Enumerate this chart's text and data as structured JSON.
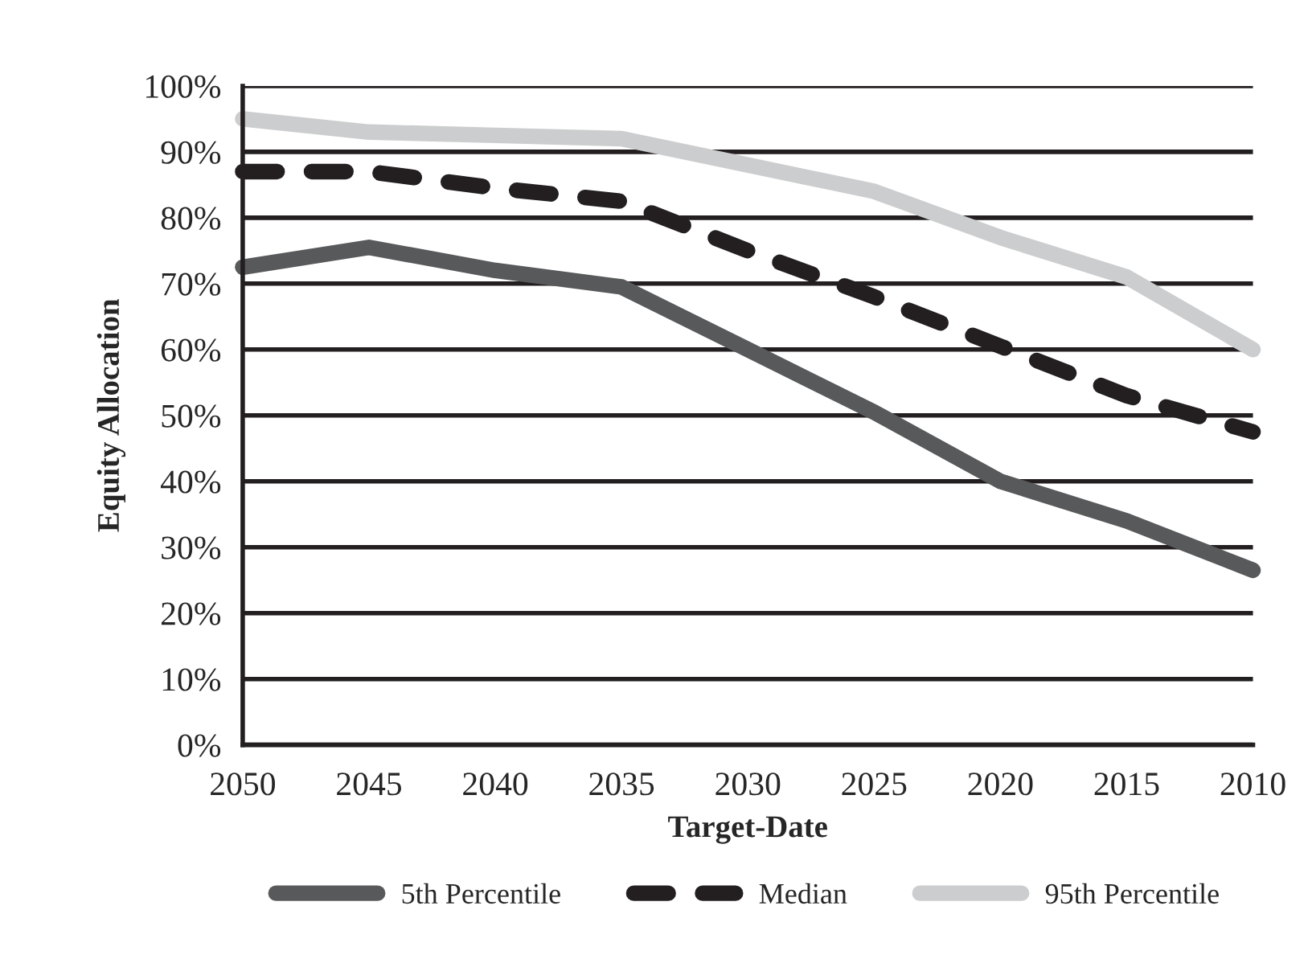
{
  "chart_data": {
    "type": "line",
    "xlabel": "Target-Date",
    "ylabel": "Equity Allocation",
    "categories": [
      "2050",
      "2045",
      "2040",
      "2035",
      "2030",
      "2025",
      "2020",
      "2015",
      "2010"
    ],
    "series": [
      {
        "name": "5th Percentile",
        "color": "#58595b",
        "line_style": "solid",
        "values": [
          72.5,
          75.5,
          72,
          69.5,
          60,
          50.5,
          40,
          34,
          26.5
        ]
      },
      {
        "name": "Median",
        "color": "#231f20",
        "line_style": "dashed",
        "values": [
          87,
          87,
          84.5,
          82.5,
          75,
          68,
          60.5,
          53,
          47.5
        ]
      },
      {
        "name": "95th Percentile",
        "color": "#cccdce",
        "line_style": "solid",
        "values": [
          95,
          93,
          92.5,
          92,
          88,
          84,
          77,
          71,
          60
        ]
      }
    ],
    "ylim": [
      0,
      100
    ],
    "yticks": [
      {
        "value": 0,
        "label": "0%"
      },
      {
        "value": 10,
        "label": "10%"
      },
      {
        "value": 20,
        "label": "20%"
      },
      {
        "value": 30,
        "label": "30%"
      },
      {
        "value": 40,
        "label": "40%"
      },
      {
        "value": 50,
        "label": "50%"
      },
      {
        "value": 60,
        "label": "60%"
      },
      {
        "value": 70,
        "label": "70%"
      },
      {
        "value": 80,
        "label": "80%"
      },
      {
        "value": 90,
        "label": "90%"
      },
      {
        "value": 100,
        "label": "100%"
      }
    ],
    "grid": "y",
    "legend": "bottom",
    "marker": "none"
  }
}
